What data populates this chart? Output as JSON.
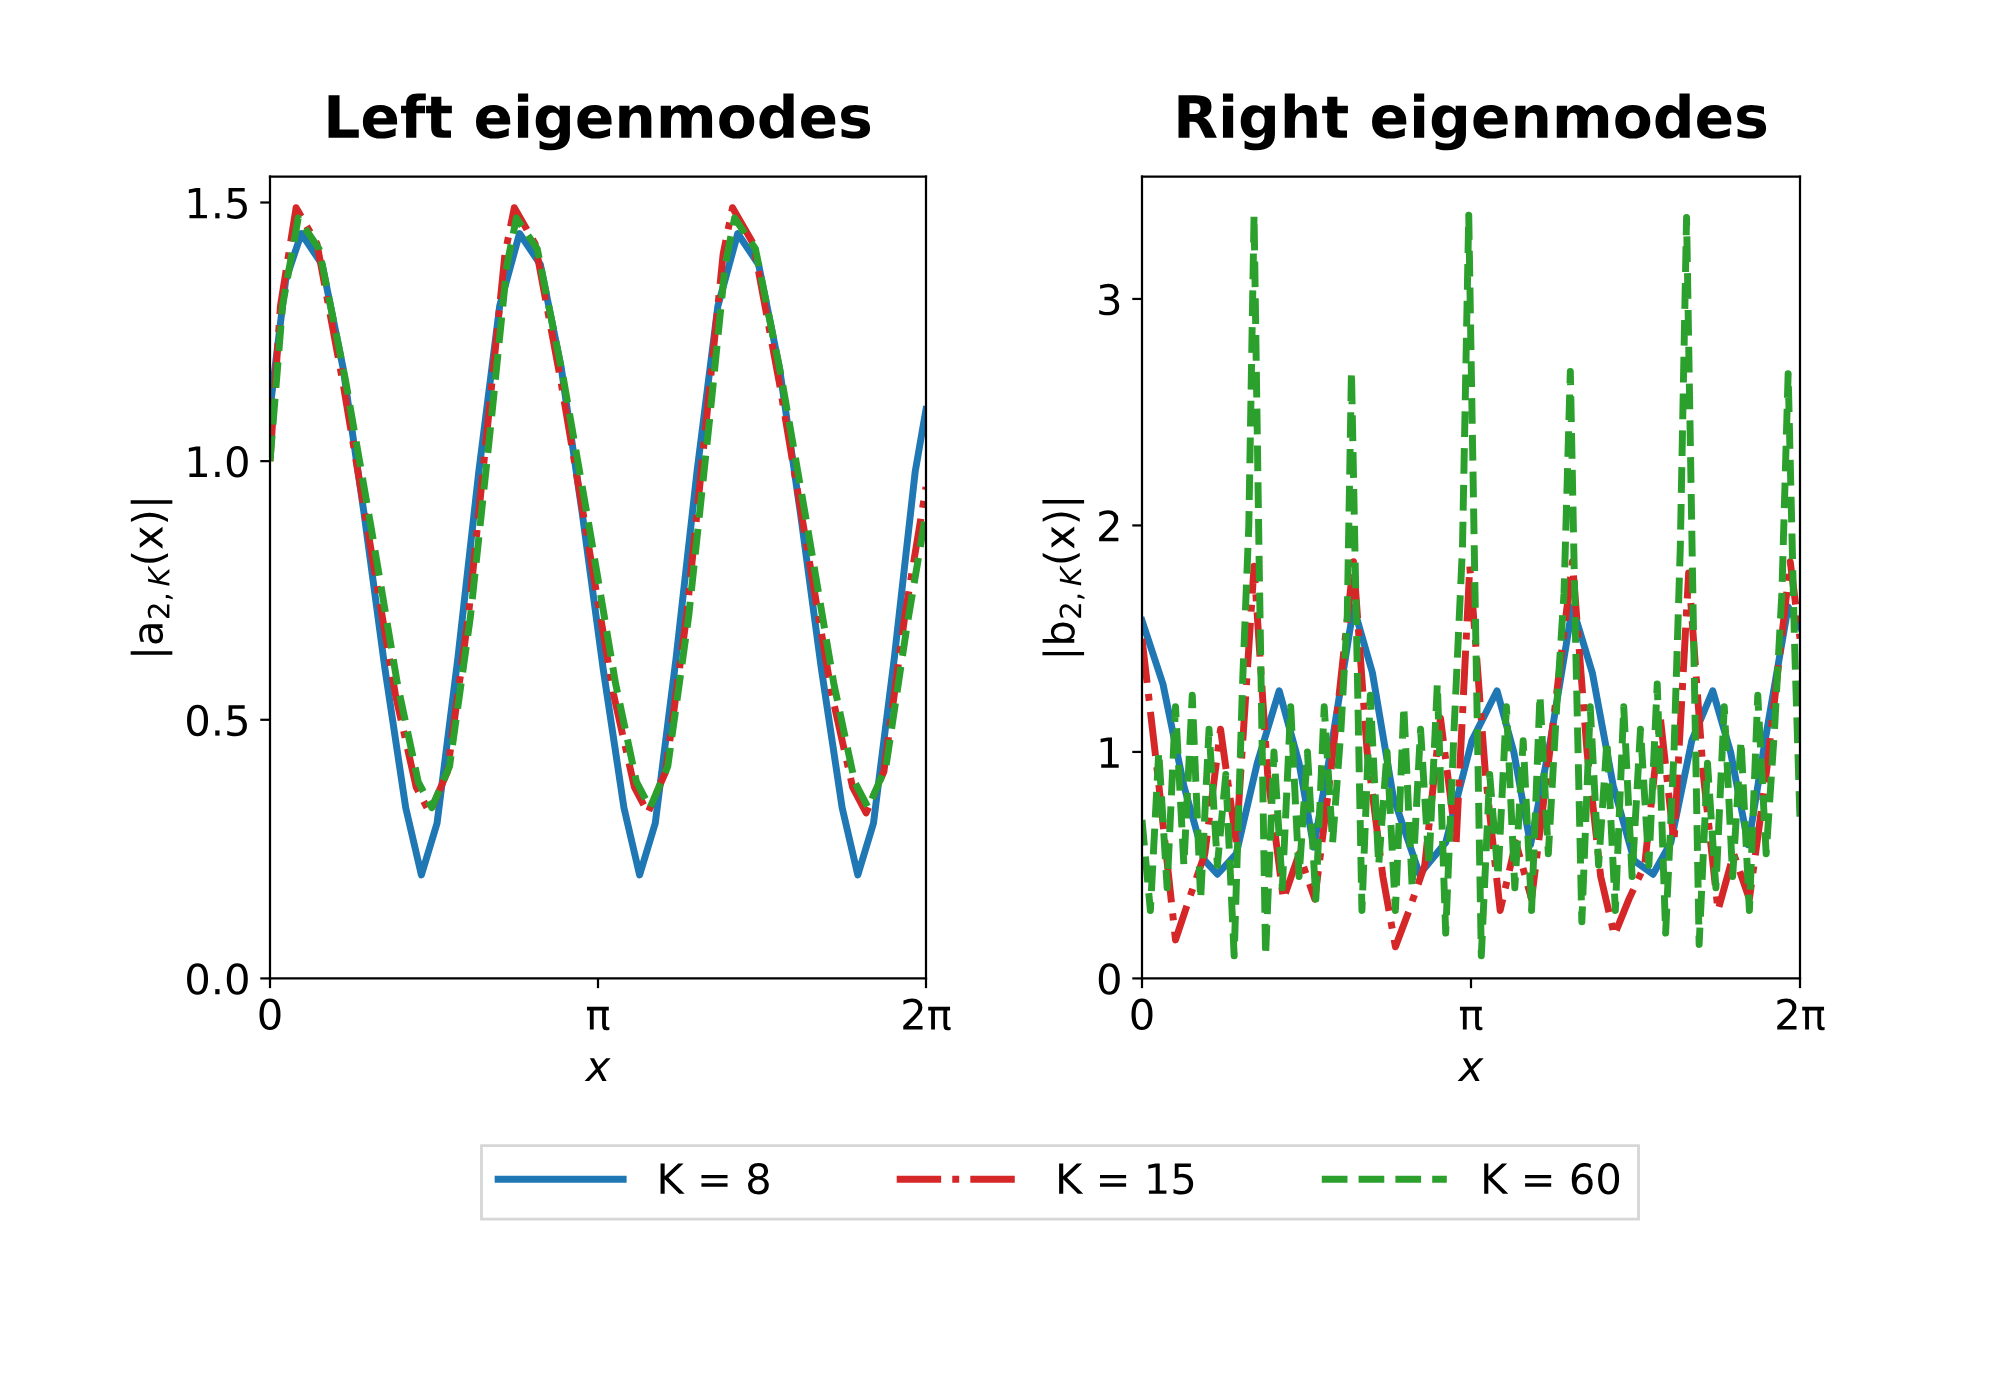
{
  "chart_data": [
    {
      "type": "line",
      "title": "Left eigenmodes",
      "xlabel": "x",
      "ylabel": "|a$_{2,K}$(x)|",
      "xlim": [
        0,
        6.28319
      ],
      "xticks": [
        {
          "value": 0,
          "label": "0"
        },
        {
          "value": 3.14159,
          "label": "π"
        },
        {
          "value": 6.28319,
          "label": "2π"
        }
      ],
      "ylim": [
        0,
        1.55
      ],
      "yticks": [
        {
          "value": 0,
          "label": "0.0"
        },
        {
          "value": 0.5,
          "label": "0.5"
        },
        {
          "value": 1.0,
          "label": "1.0"
        },
        {
          "value": 1.5,
          "label": "1.5"
        }
      ],
      "grid": false,
      "legend": "bottom",
      "series": [
        {
          "name": "K = 8",
          "color": "#1f77b4",
          "line_style": "solid",
          "x": [
            0,
            0.15,
            0.3,
            0.5,
            0.7,
            0.9,
            1.1,
            1.3,
            1.45,
            1.6,
            1.8,
            2.0,
            2.2,
            2.39,
            2.59,
            2.79,
            2.99,
            3.19,
            3.39,
            3.54,
            3.69,
            3.89,
            4.09,
            4.29,
            4.48,
            4.68,
            4.88,
            5.08,
            5.28,
            5.48,
            5.63,
            5.78,
            5.98,
            6.18,
            6.28319
          ],
          "values": [
            1.1,
            1.35,
            1.44,
            1.38,
            1.18,
            0.9,
            0.6,
            0.33,
            0.2,
            0.3,
            0.62,
            0.98,
            1.3,
            1.44,
            1.38,
            1.18,
            0.9,
            0.6,
            0.33,
            0.2,
            0.3,
            0.62,
            0.98,
            1.3,
            1.44,
            1.38,
            1.18,
            0.9,
            0.6,
            0.33,
            0.2,
            0.3,
            0.62,
            0.98,
            1.1
          ]
        },
        {
          "name": "K = 15",
          "color": "#d62728",
          "line_style": "dashdot",
          "x": [
            0,
            0.1,
            0.25,
            0.45,
            0.7,
            0.95,
            1.2,
            1.4,
            1.53,
            1.7,
            1.9,
            2.1,
            2.25,
            2.34,
            2.54,
            2.79,
            3.04,
            3.29,
            3.49,
            3.62,
            3.79,
            3.99,
            4.19,
            4.34,
            4.43,
            4.63,
            4.88,
            5.13,
            5.38,
            5.58,
            5.71,
            5.88,
            6.08,
            6.28319
          ],
          "values": [
            1.0,
            1.3,
            1.49,
            1.42,
            1.15,
            0.85,
            0.55,
            0.37,
            0.32,
            0.4,
            0.7,
            1.1,
            1.4,
            1.49,
            1.42,
            1.15,
            0.85,
            0.55,
            0.37,
            0.32,
            0.4,
            0.7,
            1.1,
            1.4,
            1.49,
            1.42,
            1.15,
            0.85,
            0.55,
            0.37,
            0.32,
            0.4,
            0.7,
            0.95
          ]
        },
        {
          "name": "K = 60",
          "color": "#2ca02c",
          "line_style": "dashed",
          "x": [
            0,
            0.12,
            0.27,
            0.47,
            0.72,
            0.97,
            1.22,
            1.42,
            1.55,
            1.72,
            1.92,
            2.12,
            2.27,
            2.36,
            2.56,
            2.81,
            3.06,
            3.31,
            3.51,
            3.64,
            3.81,
            4.01,
            4.21,
            4.36,
            4.45,
            4.65,
            4.9,
            5.15,
            5.4,
            5.6,
            5.73,
            5.9,
            6.1,
            6.28319
          ],
          "values": [
            1.0,
            1.3,
            1.47,
            1.41,
            1.16,
            0.87,
            0.57,
            0.38,
            0.33,
            0.41,
            0.7,
            1.08,
            1.38,
            1.47,
            1.41,
            1.16,
            0.87,
            0.57,
            0.38,
            0.33,
            0.41,
            0.7,
            1.08,
            1.38,
            1.47,
            1.41,
            1.16,
            0.87,
            0.57,
            0.38,
            0.33,
            0.41,
            0.68,
            0.9
          ]
        }
      ]
    },
    {
      "type": "line",
      "title": "Right eigenmodes",
      "xlabel": "x",
      "ylabel": "|b$_{2,K}$(x)|",
      "xlim": [
        0,
        6.28319
      ],
      "xticks": [
        {
          "value": 0,
          "label": "0"
        },
        {
          "value": 3.14159,
          "label": "π"
        },
        {
          "value": 6.28319,
          "label": "2π"
        }
      ],
      "ylim": [
        0,
        3.54
      ],
      "yticks": [
        0,
        1,
        2,
        3
      ],
      "grid": false,
      "series": [
        {
          "color": "#1f77b4",
          "line_style": "solid",
          "x": [
            0,
            0.2,
            0.4,
            0.6,
            0.72,
            0.9,
            1.1,
            1.31,
            1.5,
            1.64,
            1.8,
            2.02,
            2.2,
            2.4,
            2.65,
            2.9,
            3.15,
            3.39,
            3.55,
            3.71,
            3.9,
            4.11,
            4.3,
            4.5,
            4.7,
            4.88,
            5.05,
            5.25,
            5.45,
            5.62,
            5.79,
            5.95,
            6.17,
            6.28319
          ],
          "values": [
            1.58,
            1.3,
            0.85,
            0.52,
            0.46,
            0.55,
            0.95,
            1.27,
            0.95,
            0.58,
            1.0,
            1.64,
            1.35,
            0.8,
            0.46,
            0.6,
            1.05,
            1.27,
            1.0,
            0.59,
            1.05,
            1.64,
            1.35,
            0.85,
            0.52,
            0.46,
            0.6,
            1.05,
            1.27,
            1.0,
            0.59,
            1.05,
            1.64,
            1.55
          ]
        },
        {
          "color": "#d62728",
          "line_style": "dashdot",
          "x": [
            0,
            0.15,
            0.32,
            0.45,
            0.6,
            0.75,
            0.9,
            1.07,
            1.2,
            1.35,
            1.5,
            1.65,
            1.8,
            2.02,
            2.15,
            2.3,
            2.42,
            2.55,
            2.7,
            2.85,
            3.0,
            3.13,
            3.28,
            3.42,
            3.57,
            3.72,
            3.88,
            4.11,
            4.25,
            4.38,
            4.51,
            4.65,
            4.8,
            4.95,
            5.08,
            5.22,
            5.36,
            5.5,
            5.65,
            5.8,
            5.96,
            6.19,
            6.28319
          ],
          "values": [
            1.5,
            0.9,
            0.17,
            0.35,
            0.55,
            1.1,
            0.6,
            1.82,
            0.9,
            0.35,
            0.55,
            0.35,
            0.9,
            1.84,
            1.0,
            0.45,
            0.14,
            0.3,
            0.5,
            1.15,
            0.6,
            1.82,
            0.9,
            0.3,
            0.6,
            0.35,
            0.95,
            1.84,
            1.0,
            0.45,
            0.19,
            0.35,
            0.5,
            1.15,
            0.6,
            1.79,
            0.9,
            0.3,
            0.55,
            0.35,
            0.9,
            1.84,
            1.5
          ]
        },
        {
          "color": "#2ca02c",
          "line_style": "dashed",
          "x": [
            0,
            0.08,
            0.16,
            0.24,
            0.32,
            0.4,
            0.48,
            0.56,
            0.64,
            0.72,
            0.8,
            0.88,
            0.96,
            1.02,
            1.07,
            1.12,
            1.18,
            1.26,
            1.34,
            1.42,
            1.5,
            1.58,
            1.66,
            1.74,
            1.82,
            1.9,
            1.96,
            2.0,
            2.05,
            2.1,
            2.18,
            2.26,
            2.34,
            2.42,
            2.5,
            2.58,
            2.66,
            2.74,
            2.82,
            2.9,
            2.98,
            3.06,
            3.12,
            3.18,
            3.24,
            3.32,
            3.4,
            3.48,
            3.56,
            3.64,
            3.72,
            3.8,
            3.88,
            3.96,
            4.03,
            4.09,
            4.14,
            4.2,
            4.28,
            4.36,
            4.44,
            4.52,
            4.6,
            4.68,
            4.76,
            4.84,
            4.92,
            5.0,
            5.08,
            5.14,
            5.2,
            5.26,
            5.32,
            5.4,
            5.48,
            5.56,
            5.64,
            5.72,
            5.8,
            5.88,
            5.96,
            6.04,
            6.11,
            6.17,
            6.23,
            6.28319
          ],
          "values": [
            0.7,
            0.3,
            1.0,
            0.4,
            1.2,
            0.5,
            1.25,
            0.35,
            1.1,
            0.5,
            0.9,
            0.1,
            1.3,
            2.0,
            3.37,
            1.8,
            0.1,
            1.0,
            0.4,
            1.2,
            0.45,
            1.0,
            0.35,
            1.2,
            0.6,
            1.1,
            1.6,
            2.68,
            1.5,
            0.3,
            1.25,
            0.5,
            1.0,
            0.3,
            1.2,
            0.4,
            1.1,
            0.5,
            1.3,
            0.2,
            1.1,
            1.9,
            3.37,
            1.7,
            0.1,
            0.9,
            0.45,
            1.2,
            0.4,
            1.05,
            0.3,
            1.25,
            0.55,
            1.2,
            1.7,
            2.68,
            1.5,
            0.25,
            1.2,
            0.5,
            1.05,
            0.3,
            1.2,
            0.45,
            1.1,
            0.5,
            1.3,
            0.2,
            1.0,
            1.9,
            3.36,
            1.7,
            0.15,
            0.95,
            0.4,
            1.2,
            0.45,
            1.05,
            0.3,
            1.25,
            0.55,
            1.1,
            1.7,
            2.67,
            1.5,
            0.7
          ]
        }
      ]
    }
  ]
}
